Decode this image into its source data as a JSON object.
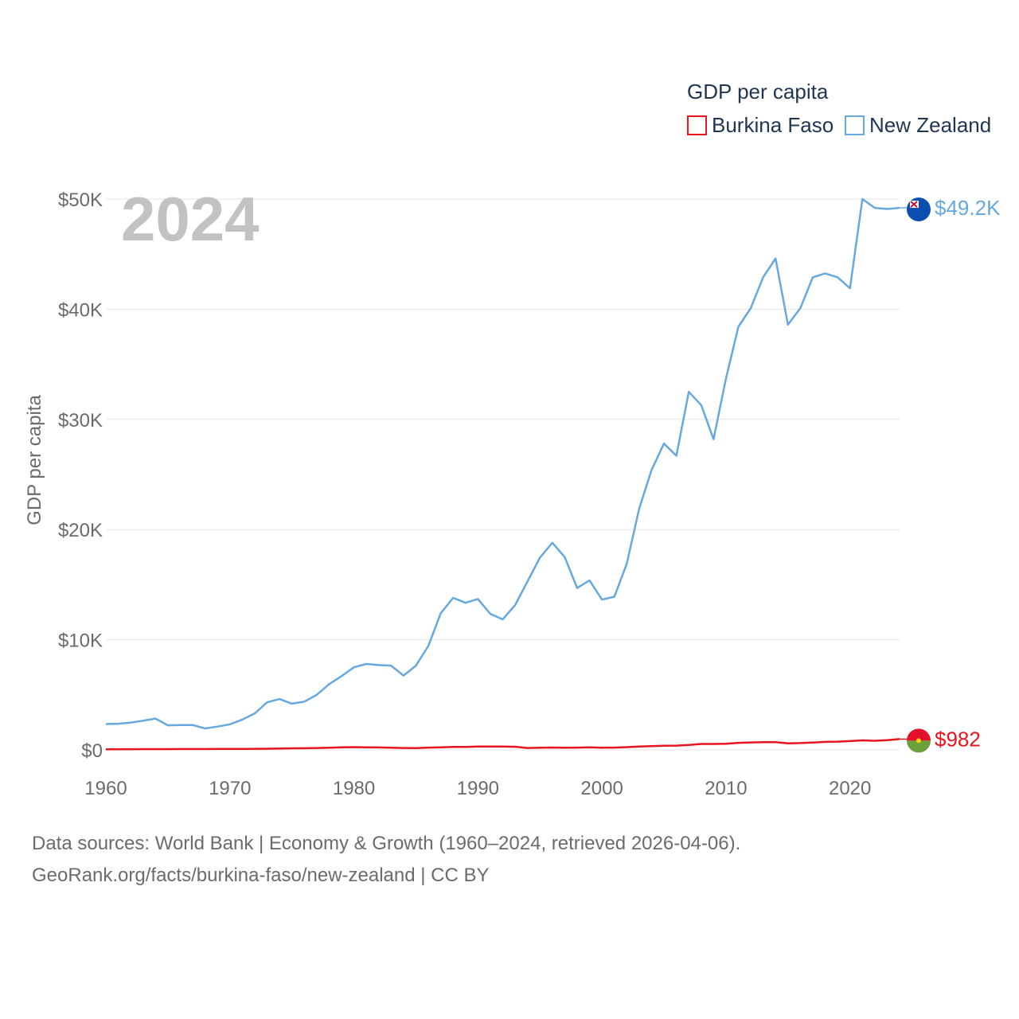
{
  "chart_data": {
    "type": "line",
    "title": "GDP per capita",
    "legend_title": "GDP per capita",
    "ylabel": "GDP per capita",
    "xlabel": "",
    "year_label": "2024",
    "xlim": [
      1960,
      2024
    ],
    "ylim": [
      0,
      50000
    ],
    "x_ticks": [
      1960,
      1970,
      1980,
      1990,
      2000,
      2010,
      2020
    ],
    "y_ticks": [
      {
        "value": 0,
        "label": "$0"
      },
      {
        "value": 10000,
        "label": "$10K"
      },
      {
        "value": 20000,
        "label": "$20K"
      },
      {
        "value": 30000,
        "label": "$30K"
      },
      {
        "value": 40000,
        "label": "$40K"
      },
      {
        "value": 50000,
        "label": "$50K"
      }
    ],
    "grid": true,
    "legend_position": "top-right",
    "x": [
      1960,
      1961,
      1962,
      1963,
      1964,
      1965,
      1966,
      1967,
      1968,
      1969,
      1970,
      1971,
      1972,
      1973,
      1974,
      1975,
      1976,
      1977,
      1978,
      1979,
      1980,
      1981,
      1982,
      1983,
      1984,
      1985,
      1986,
      1987,
      1988,
      1989,
      1990,
      1991,
      1992,
      1993,
      1994,
      1995,
      1996,
      1997,
      1998,
      1999,
      2000,
      2001,
      2002,
      2003,
      2004,
      2005,
      2006,
      2007,
      2008,
      2009,
      2010,
      2011,
      2012,
      2013,
      2014,
      2015,
      2016,
      2017,
      2018,
      2019,
      2020,
      2021,
      2022,
      2023,
      2024
    ],
    "series": [
      {
        "name": "Burkina Faso",
        "color": "#e8141e",
        "end_label": "$982",
        "values": [
          60,
          62,
          66,
          70,
          72,
          75,
          78,
          80,
          82,
          84,
          88,
          92,
          100,
          110,
          125,
          145,
          155,
          170,
          200,
          230,
          255,
          240,
          225,
          200,
          170,
          160,
          210,
          240,
          265,
          265,
          300,
          300,
          300,
          290,
          175,
          205,
          215,
          205,
          210,
          240,
          205,
          210,
          250,
          300,
          340,
          380,
          390,
          450,
          540,
          540,
          560,
          640,
          680,
          700,
          700,
          600,
          620,
          670,
          730,
          750,
          800,
          870,
          830,
          880,
          982
        ]
      },
      {
        "name": "New Zealand",
        "color": "#66a8e0",
        "end_label": "$49.2K",
        "values": [
          2350,
          2380,
          2480,
          2650,
          2850,
          2230,
          2260,
          2260,
          1950,
          2120,
          2330,
          2750,
          3300,
          4320,
          4620,
          4200,
          4380,
          5000,
          5970,
          6700,
          7500,
          7800,
          7700,
          7650,
          6750,
          7650,
          9430,
          12400,
          13800,
          13350,
          13700,
          12350,
          11850,
          13150,
          15300,
          17450,
          18800,
          17500,
          14700,
          15380,
          13650,
          13900,
          16900,
          21900,
          25400,
          27800,
          26700,
          32500,
          31300,
          28200,
          33700,
          38400,
          40100,
          42900,
          44600,
          38600,
          40100,
          42900,
          43250,
          42900,
          41900,
          50000,
          49200,
          49100,
          49200
        ]
      }
    ]
  },
  "footer": {
    "line1": "Data sources: World Bank | Economy & Growth (1960–2024, retrieved 2026-04-06).",
    "line2": "GeoRank.org/facts/burkina-faso/new-zealand | CC BY"
  },
  "colors": {
    "grid": "#e6e6e6",
    "axis_text": "#6b6b6b",
    "legend_text": "#1f3552",
    "year_text": "#c2c2c2",
    "nz_flag_blue": "#0a4fb0",
    "bf_flag_red": "#e2102a",
    "bf_flag_green": "#6aa13a",
    "bf_flag_star": "#f5d20a"
  }
}
